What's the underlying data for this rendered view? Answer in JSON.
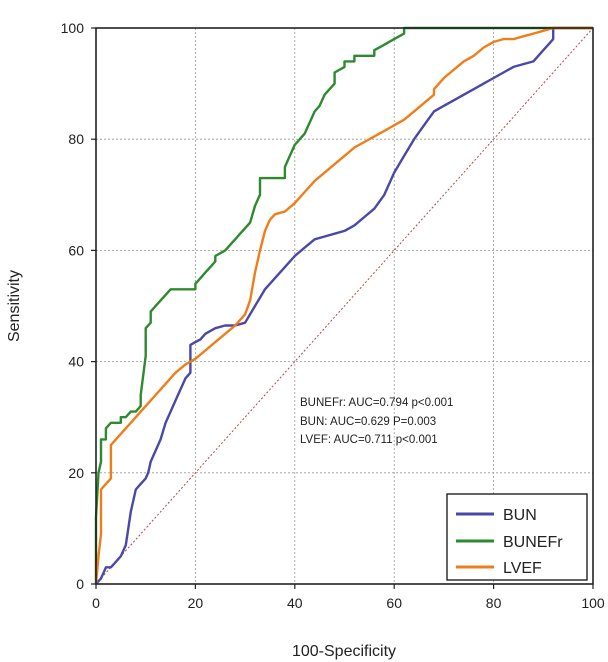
{
  "chart_data": {
    "type": "line",
    "xlabel": "100-Specificity",
    "ylabel": "Sensitivity",
    "xlim": [
      0,
      100
    ],
    "ylim": [
      0,
      100
    ],
    "xticks": [
      0,
      20,
      40,
      60,
      80,
      100
    ],
    "yticks": [
      0,
      20,
      40,
      60,
      80,
      100
    ],
    "grid": true,
    "legend_position": "bottom-right",
    "annotations": [
      "BUNEFr: AUC=0.794 p<0.001",
      "BUN:  AUC=0.629 P=0.003",
      "LVEF: AUC=0.711 p<0.001"
    ],
    "reference_line": {
      "x": [
        0,
        100
      ],
      "y": [
        0,
        100
      ],
      "color": "#b84848"
    },
    "series": [
      {
        "name": "BUN",
        "color": "#4a48a8",
        "x": [
          0,
          1,
          1.5,
          2,
          3,
          4,
          5,
          6,
          6.5,
          7,
          7.5,
          8,
          9,
          10,
          10.5,
          11,
          12,
          13,
          14,
          15,
          16,
          17,
          18,
          19,
          19,
          20,
          21,
          22,
          24,
          26,
          28,
          30,
          32,
          34,
          36,
          38,
          40,
          42,
          44,
          46,
          48,
          50,
          52,
          54,
          56,
          58,
          60,
          62,
          64,
          66,
          68,
          70,
          72,
          74,
          76,
          78,
          80,
          82,
          84,
          86,
          88,
          90,
          91,
          92,
          92,
          100
        ],
        "y": [
          0,
          1,
          2,
          3,
          3,
          4,
          5,
          7,
          10,
          13,
          15,
          17,
          18,
          19,
          20,
          22,
          24,
          26,
          29,
          31,
          33,
          35,
          37,
          38,
          43,
          43.5,
          44,
          45,
          46,
          46.5,
          46.5,
          47,
          50,
          53,
          55,
          57,
          59,
          60.5,
          62,
          62.5,
          63,
          63.5,
          64.5,
          66,
          67.5,
          70,
          74,
          77,
          80,
          82.5,
          85,
          86,
          87,
          88,
          89,
          90,
          91,
          92,
          93,
          93.5,
          94,
          96,
          97,
          98,
          100,
          100
        ]
      },
      {
        "name": "BUNEFr",
        "color": "#2e8a2e",
        "x": [
          0,
          0,
          0.5,
          1,
          1,
          2,
          2,
          3,
          4,
          5,
          5,
          6,
          7,
          8,
          9,
          9,
          10,
          10,
          11,
          11,
          12,
          13,
          14,
          15,
          20,
          20,
          21,
          22,
          23,
          24,
          24,
          26,
          27,
          28,
          29,
          30,
          31,
          32,
          33,
          33,
          38,
          38,
          39,
          40,
          41,
          42,
          43,
          44,
          45,
          46,
          48,
          48,
          50,
          50,
          52,
          52,
          56,
          56,
          58,
          60,
          62,
          62,
          100
        ],
        "y": [
          0,
          12,
          20,
          22,
          26,
          26,
          28,
          29,
          29,
          29,
          30,
          30,
          31,
          31,
          32,
          34,
          41,
          46,
          47,
          49,
          50,
          51,
          52,
          53,
          53,
          54,
          55,
          56,
          57,
          58,
          59,
          60,
          61,
          62,
          63,
          64,
          65,
          68,
          70,
          73,
          73,
          75,
          77,
          79,
          80,
          81,
          83,
          85,
          86,
          88,
          90,
          92,
          93,
          94,
          94,
          95,
          95,
          96,
          97,
          98,
          99,
          100,
          100
        ]
      },
      {
        "name": "LVEF",
        "color": "#f07d1a",
        "x": [
          0,
          0.5,
          1,
          1,
          2,
          3,
          3,
          4,
          5,
          6,
          7,
          8,
          9,
          10,
          12,
          14,
          16,
          18,
          20,
          22,
          24,
          26,
          28,
          30,
          31,
          32,
          33,
          34,
          35,
          36,
          38,
          40,
          42,
          44,
          46,
          48,
          50,
          52,
          54,
          56,
          58,
          60,
          62,
          64,
          66,
          68,
          68,
          70,
          72,
          74,
          76,
          78,
          80,
          82,
          84,
          86,
          88,
          90,
          92,
          94,
          96,
          98,
          100
        ],
        "y": [
          0,
          5,
          9,
          17,
          18,
          19,
          25,
          26,
          27,
          28,
          29,
          30,
          31,
          32,
          34,
          36,
          38,
          39.5,
          40.5,
          42,
          43.5,
          45,
          46.5,
          48.5,
          51,
          56,
          60,
          63.5,
          65.5,
          66.5,
          67,
          68.5,
          70.5,
          72.5,
          74,
          75.5,
          77,
          78.5,
          79.5,
          80.5,
          81.5,
          82.5,
          83.5,
          85,
          86.5,
          88,
          89,
          91,
          92.5,
          94,
          95,
          96.5,
          97.5,
          98,
          98,
          98.5,
          99,
          99.5,
          100,
          100,
          100,
          100,
          100
        ]
      }
    ]
  }
}
